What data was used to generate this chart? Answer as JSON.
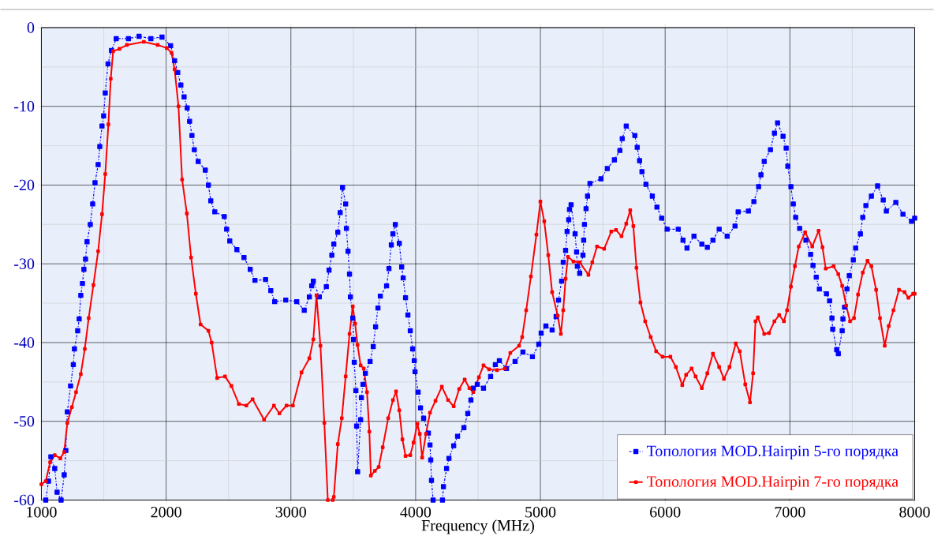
{
  "chart_data": {
    "type": "line",
    "xlabel": "Frequency (MHz)",
    "xlim": [
      1000,
      8000
    ],
    "ylim": [
      -60,
      0
    ],
    "xticks": [
      1000,
      2000,
      3000,
      4000,
      5000,
      6000,
      7000,
      8000
    ],
    "yticks": [
      0,
      -10,
      -20,
      -30,
      -40,
      -50,
      -60
    ],
    "grid": true,
    "legend": "bottom right",
    "series": [
      {
        "name": "Топология MOD.Hairpin 5-го порядка",
        "color": "#0000ff",
        "marker": "square",
        "line_style": "dashdot",
        "x": [
          1035,
          1057,
          1076,
          1107,
          1126,
          1158,
          1183,
          1196,
          1208,
          1234,
          1256,
          1265,
          1291,
          1303,
          1316,
          1329,
          1341,
          1354,
          1366,
          1392,
          1411,
          1430,
          1455,
          1468,
          1486,
          1499,
          1512,
          1534,
          1562,
          1600,
          1698,
          1783,
          1878,
          1967,
          2036,
          2068,
          2093,
          2118,
          2144,
          2169,
          2188,
          2207,
          2226,
          2257,
          2314,
          2339,
          2358,
          2390,
          2466,
          2485,
          2510,
          2567,
          2624,
          2674,
          2712,
          2797,
          2839,
          2870,
          2959,
          3047,
          3107,
          3148,
          3167,
          3180,
          3228,
          3284,
          3306,
          3328,
          3344,
          3376,
          3395,
          3414,
          3439,
          3445,
          3458,
          3470,
          3477,
          3496,
          3502,
          3508,
          3521,
          3527,
          3535,
          3559,
          3565,
          3578,
          3597,
          3635,
          3660,
          3679,
          3698,
          3717,
          3767,
          3786,
          3805,
          3818,
          3837,
          3869,
          3888,
          3900,
          3919,
          3938,
          3957,
          3976,
          3989,
          3995,
          4020,
          4039,
          4064,
          4102,
          4115,
          4121,
          4127,
          4140,
          4175,
          4215,
          4223,
          4248,
          4267,
          4305,
          4336,
          4387,
          4418,
          4443,
          4462,
          4494,
          4544,
          4601,
          4639,
          4671,
          4728,
          4797,
          4860,
          4936,
          4987,
          5006,
          5044,
          5094,
          5126,
          5145,
          5170,
          5183,
          5202,
          5214,
          5227,
          5233,
          5246,
          5278,
          5290,
          5296,
          5315,
          5341,
          5347,
          5353,
          5366,
          5378,
          5397,
          5486,
          5536,
          5593,
          5637,
          5656,
          5688,
          5757,
          5776,
          5795,
          5814,
          5846,
          5897,
          5934,
          5972,
          6016,
          6105,
          6143,
          6175,
          6231,
          6294,
          6338,
          6383,
          6433,
          6497,
          6560,
          6585,
          6667,
          6711,
          6749,
          6768,
          6794,
          6844,
          6876,
          6901,
          6945,
          6970,
          6983,
          7008,
          7027,
          7046,
          7078,
          7128,
          7166,
          7185,
          7211,
          7236,
          7293,
          7318,
          7337,
          7343,
          7375,
          7388,
          7419,
          7425,
          7438,
          7457,
          7476,
          7508,
          7527,
          7565,
          7584,
          7609,
          7653,
          7703,
          7748,
          7773,
          7849,
          7906,
          7975,
          8000
        ],
        "values": [
          -60,
          -57.6,
          -54.5,
          -56,
          -59,
          -60,
          -56.8,
          -53.7,
          -48.8,
          -45.5,
          -42.8,
          -40.8,
          -38.5,
          -37,
          -34,
          -32.5,
          -30.7,
          -29.4,
          -27.2,
          -25,
          -22.4,
          -19.7,
          -17.4,
          -15.1,
          -12.5,
          -11.2,
          -8.3,
          -4.6,
          -2.9,
          -1.4,
          -1.4,
          -1.1,
          -1.4,
          -1.2,
          -2.3,
          -4.2,
          -5.7,
          -7.3,
          -8.8,
          -10.2,
          -11.9,
          -13.7,
          -15.5,
          -17,
          -18.1,
          -20,
          -22,
          -23.4,
          -24,
          -25.6,
          -27.1,
          -28.2,
          -29.2,
          -30.7,
          -32.1,
          -32,
          -33.4,
          -34.8,
          -34.6,
          -34.8,
          -35.9,
          -34.2,
          -32.8,
          -32.2,
          -34.2,
          -32.9,
          -30.8,
          -28.9,
          -27.5,
          -26,
          -23.5,
          -20.3,
          -22.4,
          -25.5,
          -28.4,
          -31.3,
          -34.2,
          -36.9,
          -39.6,
          -42.5,
          -46.1,
          -50.6,
          -56.4,
          -49.8,
          -47,
          -45.3,
          -43.9,
          -42.4,
          -40.5,
          -38,
          -35.6,
          -34.1,
          -32.8,
          -30.6,
          -27.6,
          -26.2,
          -25,
          -27.4,
          -30.4,
          -31.8,
          -34.3,
          -36.5,
          -38.5,
          -40.8,
          -42.3,
          -43.7,
          -46.3,
          -48.3,
          -49.6,
          -51.5,
          -53,
          -54.9,
          -57.5,
          -60,
          null,
          -60,
          -58.3,
          -56,
          -54.7,
          -53.1,
          -51.9,
          -50.8,
          -49,
          -47.3,
          -45.8,
          -45.3,
          -45.8,
          -44.3,
          -42.8,
          -42.3,
          -43.3,
          -42.4,
          -41.2,
          -41.8,
          -40.2,
          -38.8,
          -37.9,
          -38.4,
          -36.7,
          -34.6,
          -32.2,
          -29.8,
          -28.3,
          -25.9,
          -24.4,
          -23.1,
          -22.5,
          -26.2,
          -28.5,
          -30.3,
          -31.2,
          -28.9,
          -27,
          -25,
          -23,
          -21.4,
          -19.8,
          -19.2,
          -17.9,
          -16.8,
          -15.6,
          -14.1,
          -12.5,
          -13.7,
          -15.2,
          -16.9,
          -18.3,
          -19.9,
          -21.4,
          -22.8,
          -24.2,
          -25.6,
          -25.6,
          -27,
          -28,
          -26.5,
          -27.5,
          -27.9,
          -27,
          -25.6,
          -26.5,
          -25.2,
          -23.4,
          -23.3,
          -22.1,
          -20.2,
          -18.7,
          -17,
          -15.5,
          -13.4,
          -12.1,
          -13.8,
          -15.3,
          -17.6,
          -20.2,
          -22.4,
          -24.1,
          -25.5,
          -27,
          -28.8,
          -30.2,
          -31.7,
          -33.2,
          -33.8,
          -34.7,
          -36.9,
          -38.3,
          -40.9,
          -41.4,
          -38.5,
          -37,
          -35.5,
          -33.2,
          -31.5,
          -29.5,
          -28,
          -26.2,
          -24.1,
          -22.6,
          -21.4,
          -20.1,
          -21.9,
          -23.3,
          -22.2,
          -23.7,
          -24.6,
          -24.2
        ]
      },
      {
        "name": "Топология MOD.Hairpin 7-го порядка",
        "color": "#ff0000",
        "marker": "square",
        "line_style": "solid",
        "x": [
          1000,
          1035,
          1070,
          1107,
          1152,
          1183,
          1208,
          1244,
          1278,
          1316,
          1348,
          1379,
          1417,
          1455,
          1486,
          1512,
          1537,
          1556,
          1575,
          1626,
          1686,
          1821,
          1932,
          2005,
          2043,
          2068,
          2099,
          2128,
          2166,
          2200,
          2238,
          2276,
          2339,
          2365,
          2409,
          2472,
          2523,
          2583,
          2643,
          2693,
          2785,
          2864,
          2908,
          2965,
          3016,
          3085,
          3148,
          3180,
          3205,
          3237,
          3268,
          3296,
          3315,
          3335,
          3344,
          3376,
          3408,
          3439,
          3470,
          3496,
          3515,
          3534,
          3559,
          3584,
          3610,
          3629,
          3641,
          3673,
          3704,
          3736,
          3780,
          3818,
          3843,
          3869,
          3894,
          3919,
          3957,
          3983,
          4014,
          4033,
          4052,
          4083,
          4115,
          4159,
          4210,
          4260,
          4305,
          4349,
          4393,
          4431,
          4462,
          4507,
          4544,
          4589,
          4652,
          4715,
          4759,
          4829,
          4854,
          4886,
          4924,
          4968,
          5000,
          5031,
          5063,
          5094,
          5139,
          5164,
          5183,
          5202,
          5221,
          5265,
          5315,
          5385,
          5416,
          5454,
          5511,
          5568,
          5606,
          5650,
          5688,
          5720,
          5745,
          5770,
          5802,
          5840,
          5884,
          5928,
          5979,
          6042,
          6086,
          6137,
          6168,
          6212,
          6244,
          6294,
          6338,
          6383,
          6433,
          6471,
          6516,
          6566,
          6598,
          6642,
          6680,
          6705,
          6724,
          6743,
          6794,
          6832,
          6876,
          6914,
          6952,
          6977,
          7008,
          7040,
          7071,
          7122,
          7179,
          7230,
          7261,
          7287,
          7350,
          7388,
          7419,
          7451,
          7482,
          7514,
          7546,
          7584,
          7622,
          7653,
          7691,
          7722,
          7760,
          7792,
          7830,
          7874,
          7919,
          7950,
          7988,
          8000
        ],
        "values": [
          -58,
          -57.6,
          -55.2,
          -54.3,
          -54.7,
          -53.9,
          -50.2,
          -48.2,
          -46.3,
          -44,
          -40.8,
          -36.9,
          -32.7,
          -28.4,
          -23.7,
          -18.6,
          -12.3,
          -6.5,
          -3,
          -2.7,
          -2.2,
          -1.8,
          -2.2,
          -2.6,
          -3.2,
          -5.3,
          -10,
          -19.3,
          -23.6,
          -29.2,
          -33.8,
          -37.7,
          -38.5,
          -40,
          -44.5,
          -44.3,
          -45.5,
          -47.8,
          -48,
          -47.2,
          -49.8,
          -48,
          -49,
          -48,
          -48,
          -43.8,
          -42,
          -39.6,
          -34,
          -40.4,
          -50.2,
          -60,
          null,
          -60,
          -59.6,
          -52.9,
          -49.6,
          -44.3,
          -38.9,
          -35.4,
          -37.6,
          -40.3,
          -42.9,
          -43.3,
          -46.3,
          -51.3,
          -56.9,
          -56.3,
          -55.8,
          -53.3,
          -49.6,
          -47.3,
          -46.2,
          -48.6,
          -52.3,
          -54.4,
          -54.3,
          -52.7,
          -50.3,
          -51.6,
          -54.6,
          -51.6,
          -48.9,
          -47.4,
          -45.6,
          -47.3,
          -48.1,
          -45.9,
          -44.7,
          -45.8,
          -46.3,
          -44.4,
          -42.9,
          -43.4,
          -43.5,
          -43.3,
          -41.3,
          -40.4,
          -39.3,
          -35.9,
          -31.6,
          -26.3,
          -22.1,
          -24.6,
          -28.9,
          -33.6,
          -36.6,
          -38.9,
          -35.9,
          -31.9,
          -29.1,
          -29.7,
          -29.8,
          -31.4,
          -29.8,
          -27.8,
          -28.1,
          -25.9,
          -25.7,
          -26.5,
          -24.9,
          -23.2,
          -25.2,
          -30.5,
          -34.9,
          -37.3,
          -39.3,
          -41.1,
          -41.8,
          -41.8,
          -43.1,
          -45.4,
          -44.1,
          -43.3,
          -44.3,
          -45.8,
          -43.9,
          -41.4,
          -43.1,
          -44.6,
          -43.1,
          -40.1,
          -41.1,
          -45.3,
          -47.6,
          -43.9,
          -37.3,
          -36.8,
          -38.9,
          -38.8,
          -37.3,
          -36.5,
          -37.3,
          -35.9,
          -32.9,
          -30.3,
          -27.8,
          -26,
          -27.8,
          -25.8,
          -27.9,
          -30.6,
          -30.3,
          -31.3,
          -32.8,
          -35.3,
          -37.3,
          -36.9,
          -33.9,
          -31.1,
          -29.6,
          -30.3,
          -33.3,
          -36.9,
          -40.4,
          -37.9,
          -35.9,
          -33.3,
          -33.6,
          -34.3,
          -33.8,
          -33.8
        ]
      }
    ]
  }
}
